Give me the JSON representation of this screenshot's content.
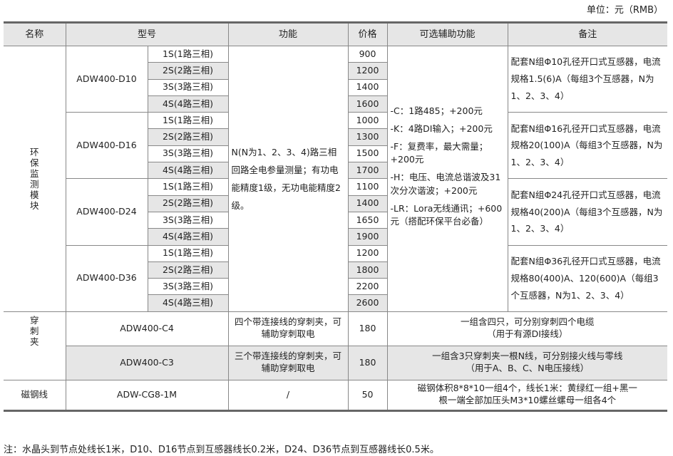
{
  "unit": "单位：元（RMB）",
  "headers": [
    "名称",
    "型号",
    "功能",
    "价格",
    "可选辅助功能",
    "备注"
  ],
  "module_name": "环\n保\n监\n测\n模\n块",
  "variants": [
    "1S(1路三相)",
    "2S(2路三相)",
    "3S(3路三相)",
    "4S(4路三相)"
  ],
  "models": [
    {
      "model": "ADW400-D10",
      "prices": [
        "900",
        "1200",
        "1400",
        "1600"
      ],
      "note": "配套N组Φ10孔径开口式互感器，电流规格1.5(6)A（每组3个互感器，N为1、2、3、4）"
    },
    {
      "model": "ADW400-D16",
      "prices": [
        "1000",
        "1300",
        "1500",
        "1700"
      ],
      "note": "配套N组Φ16孔径开口式互感器，电流规格20(100)A（每组3个互感器，N为1、2、3、4）"
    },
    {
      "model": "ADW400-D24",
      "prices": [
        "1100",
        "1400",
        "1650",
        "1900"
      ],
      "note": "配套N组Φ24孔径开口式互感器，电流规格40(200)A（每组3个互感器，N为1、2、3、4）"
    },
    {
      "model": "ADW400-D36",
      "prices": [
        "1200",
        "1800",
        "2200",
        "2600"
      ],
      "note": "配套N组Φ36孔径开口式互感器，电流规格80(400)A、120(600)A（每组3个互感器，N为1、2、3、4）"
    }
  ],
  "function": "N(N为1、2、3、4)路三相回路全电参量测量；有功电能精度1级，无功电能精度2级。",
  "options": [
    "-C：1路485；+200元",
    "-K：4路DI输入；+200元",
    "-F：复费率，最大需量；+200元",
    "-H：电压、电流总谐波及31次分次谐波；+200元",
    "-LR：Lora无线通讯；+600元（搭配环保平台必备）"
  ],
  "clamp_name": "穿\n刺\n夹",
  "clamps": [
    {
      "model": "ADW400-C4",
      "function": "四个带连接线的穿刺夹，可辅助穿刺取电",
      "price": "180",
      "note1": "一组含四只，可分别穿刺四个电缆",
      "note2": "（用于有源DI接线）"
    },
    {
      "model": "ADW400-C3",
      "function": "三个带连接线的穿刺夹，可辅助穿刺取电",
      "price": "180",
      "note1": "一组含3只穿刺夹一根N线，可分别接火线与零线",
      "note2": "（用于A、B、C、N电压接线）"
    }
  ],
  "magnet": {
    "name": "磁钢线",
    "model": "ADW-CG8-1M",
    "function": "/",
    "price": "50",
    "note1": "磁钢体积8*8*10一组4个，线长1米：黄绿红一组+黑一",
    "note2": "根一端全部加压头M3*10螺丝螺母一组各4个"
  },
  "footnote": "注：水晶头到节点处线长1米，D10、D16节点到互感器线长0.2米，D24、D36节点到互感器线长0.5米。"
}
